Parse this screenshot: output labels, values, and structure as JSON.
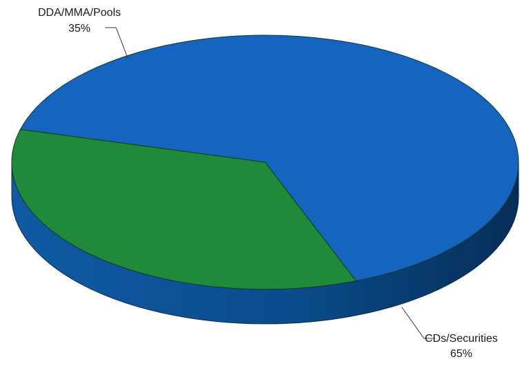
{
  "chart_data": {
    "type": "pie",
    "style": "3d",
    "title": "",
    "slices": [
      {
        "label": "CDs/Securities",
        "value": 65,
        "value_label": "65%",
        "color": "#1565c0",
        "side_color": "#0b4f91"
      },
      {
        "label": "DDA/MMA/Pools",
        "value": 35,
        "value_label": "35%",
        "color": "#1f8a3a",
        "side_color": "#166a2c"
      }
    ],
    "legend": "none",
    "label_style": "callout with leader lines"
  }
}
